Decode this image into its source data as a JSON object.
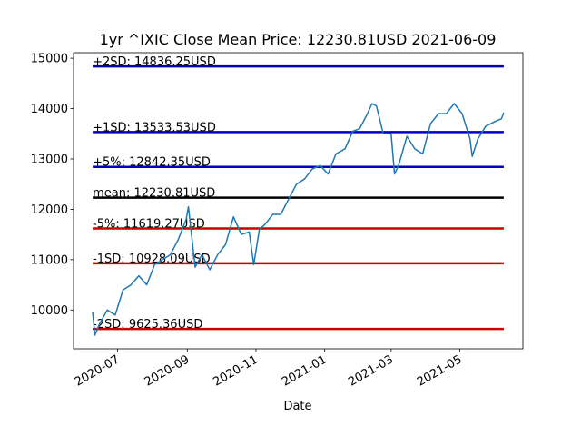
{
  "chart_data": {
    "type": "line",
    "title": "1yr ^IXIC Close Mean Price: 12230.81USD 2021-06-09",
    "xlabel": "Date",
    "x": [
      "2020-06-09",
      "2020-06-11",
      "2020-06-15",
      "2020-06-22",
      "2020-06-29",
      "2020-07-06",
      "2020-07-13",
      "2020-07-20",
      "2020-07-27",
      "2020-08-03",
      "2020-08-10",
      "2020-08-17",
      "2020-08-24",
      "2020-08-31",
      "2020-09-02",
      "2020-09-08",
      "2020-09-14",
      "2020-09-21",
      "2020-09-28",
      "2020-10-05",
      "2020-10-12",
      "2020-10-19",
      "2020-10-26",
      "2020-10-30",
      "2020-11-04",
      "2020-11-09",
      "2020-11-16",
      "2020-11-23",
      "2020-11-30",
      "2020-12-07",
      "2020-12-14",
      "2020-12-21",
      "2020-12-28",
      "2021-01-04",
      "2021-01-11",
      "2021-01-19",
      "2021-01-26",
      "2021-02-01",
      "2021-02-08",
      "2021-02-12",
      "2021-02-16",
      "2021-02-22",
      "2021-03-01",
      "2021-03-04",
      "2021-03-08",
      "2021-03-15",
      "2021-03-22",
      "2021-03-29",
      "2021-04-05",
      "2021-04-12",
      "2021-04-19",
      "2021-04-26",
      "2021-05-03",
      "2021-05-10",
      "2021-05-12",
      "2021-05-17",
      "2021-05-24",
      "2021-06-01",
      "2021-06-07",
      "2021-06-09"
    ],
    "values": [
      9950,
      9500,
      9720,
      10000,
      9900,
      10400,
      10500,
      10680,
      10500,
      10900,
      11000,
      11100,
      11400,
      11800,
      12050,
      10850,
      11100,
      10800,
      11100,
      11300,
      11850,
      11500,
      11550,
      10900,
      11600,
      11700,
      11900,
      11900,
      12200,
      12500,
      12600,
      12800,
      12870,
      12700,
      13100,
      13200,
      13550,
      13600,
      13900,
      14100,
      14050,
      13500,
      13500,
      12700,
      12900,
      13450,
      13200,
      13100,
      13700,
      13900,
      13900,
      14100,
      13900,
      13400,
      13050,
      13400,
      13650,
      13740,
      13800,
      13920
    ],
    "color": "#1f77b4",
    "levels": [
      {
        "label": "+2SD: 14836.25USD",
        "value": 14836.25,
        "color": "#0000c0"
      },
      {
        "label": "+1SD: 13533.53USD",
        "value": 13533.53,
        "color": "#0000c0"
      },
      {
        "label": "+5%: 12842.35USD",
        "value": 12842.35,
        "color": "#0000c0"
      },
      {
        "label": "mean: 12230.81USD",
        "value": 12230.81,
        "color": "#000000"
      },
      {
        "label": "-5%: 11619.27USD",
        "value": 11619.27,
        "color": "#cc0000"
      },
      {
        "label": "-1SD: 10928.09USD",
        "value": 10928.09,
        "color": "#cc0000"
      },
      {
        "label": "-2SD: 9625.36USD",
        "value": 9625.36,
        "color": "#cc0000"
      }
    ],
    "xlim": [
      "2020-05-23",
      "2021-06-26"
    ],
    "xticks": [
      {
        "value": "2020-07-01",
        "label": "2020-07"
      },
      {
        "value": "2020-09-01",
        "label": "2020-09"
      },
      {
        "value": "2020-11-01",
        "label": "2020-11"
      },
      {
        "value": "2021-01-01",
        "label": "2021-01"
      },
      {
        "value": "2021-03-01",
        "label": "2021-03"
      },
      {
        "value": "2021-05-01",
        "label": "2021-05"
      }
    ],
    "ylim": [
      9230,
      15110
    ],
    "yticks": [
      10000,
      11000,
      12000,
      13000,
      14000,
      15000
    ]
  }
}
